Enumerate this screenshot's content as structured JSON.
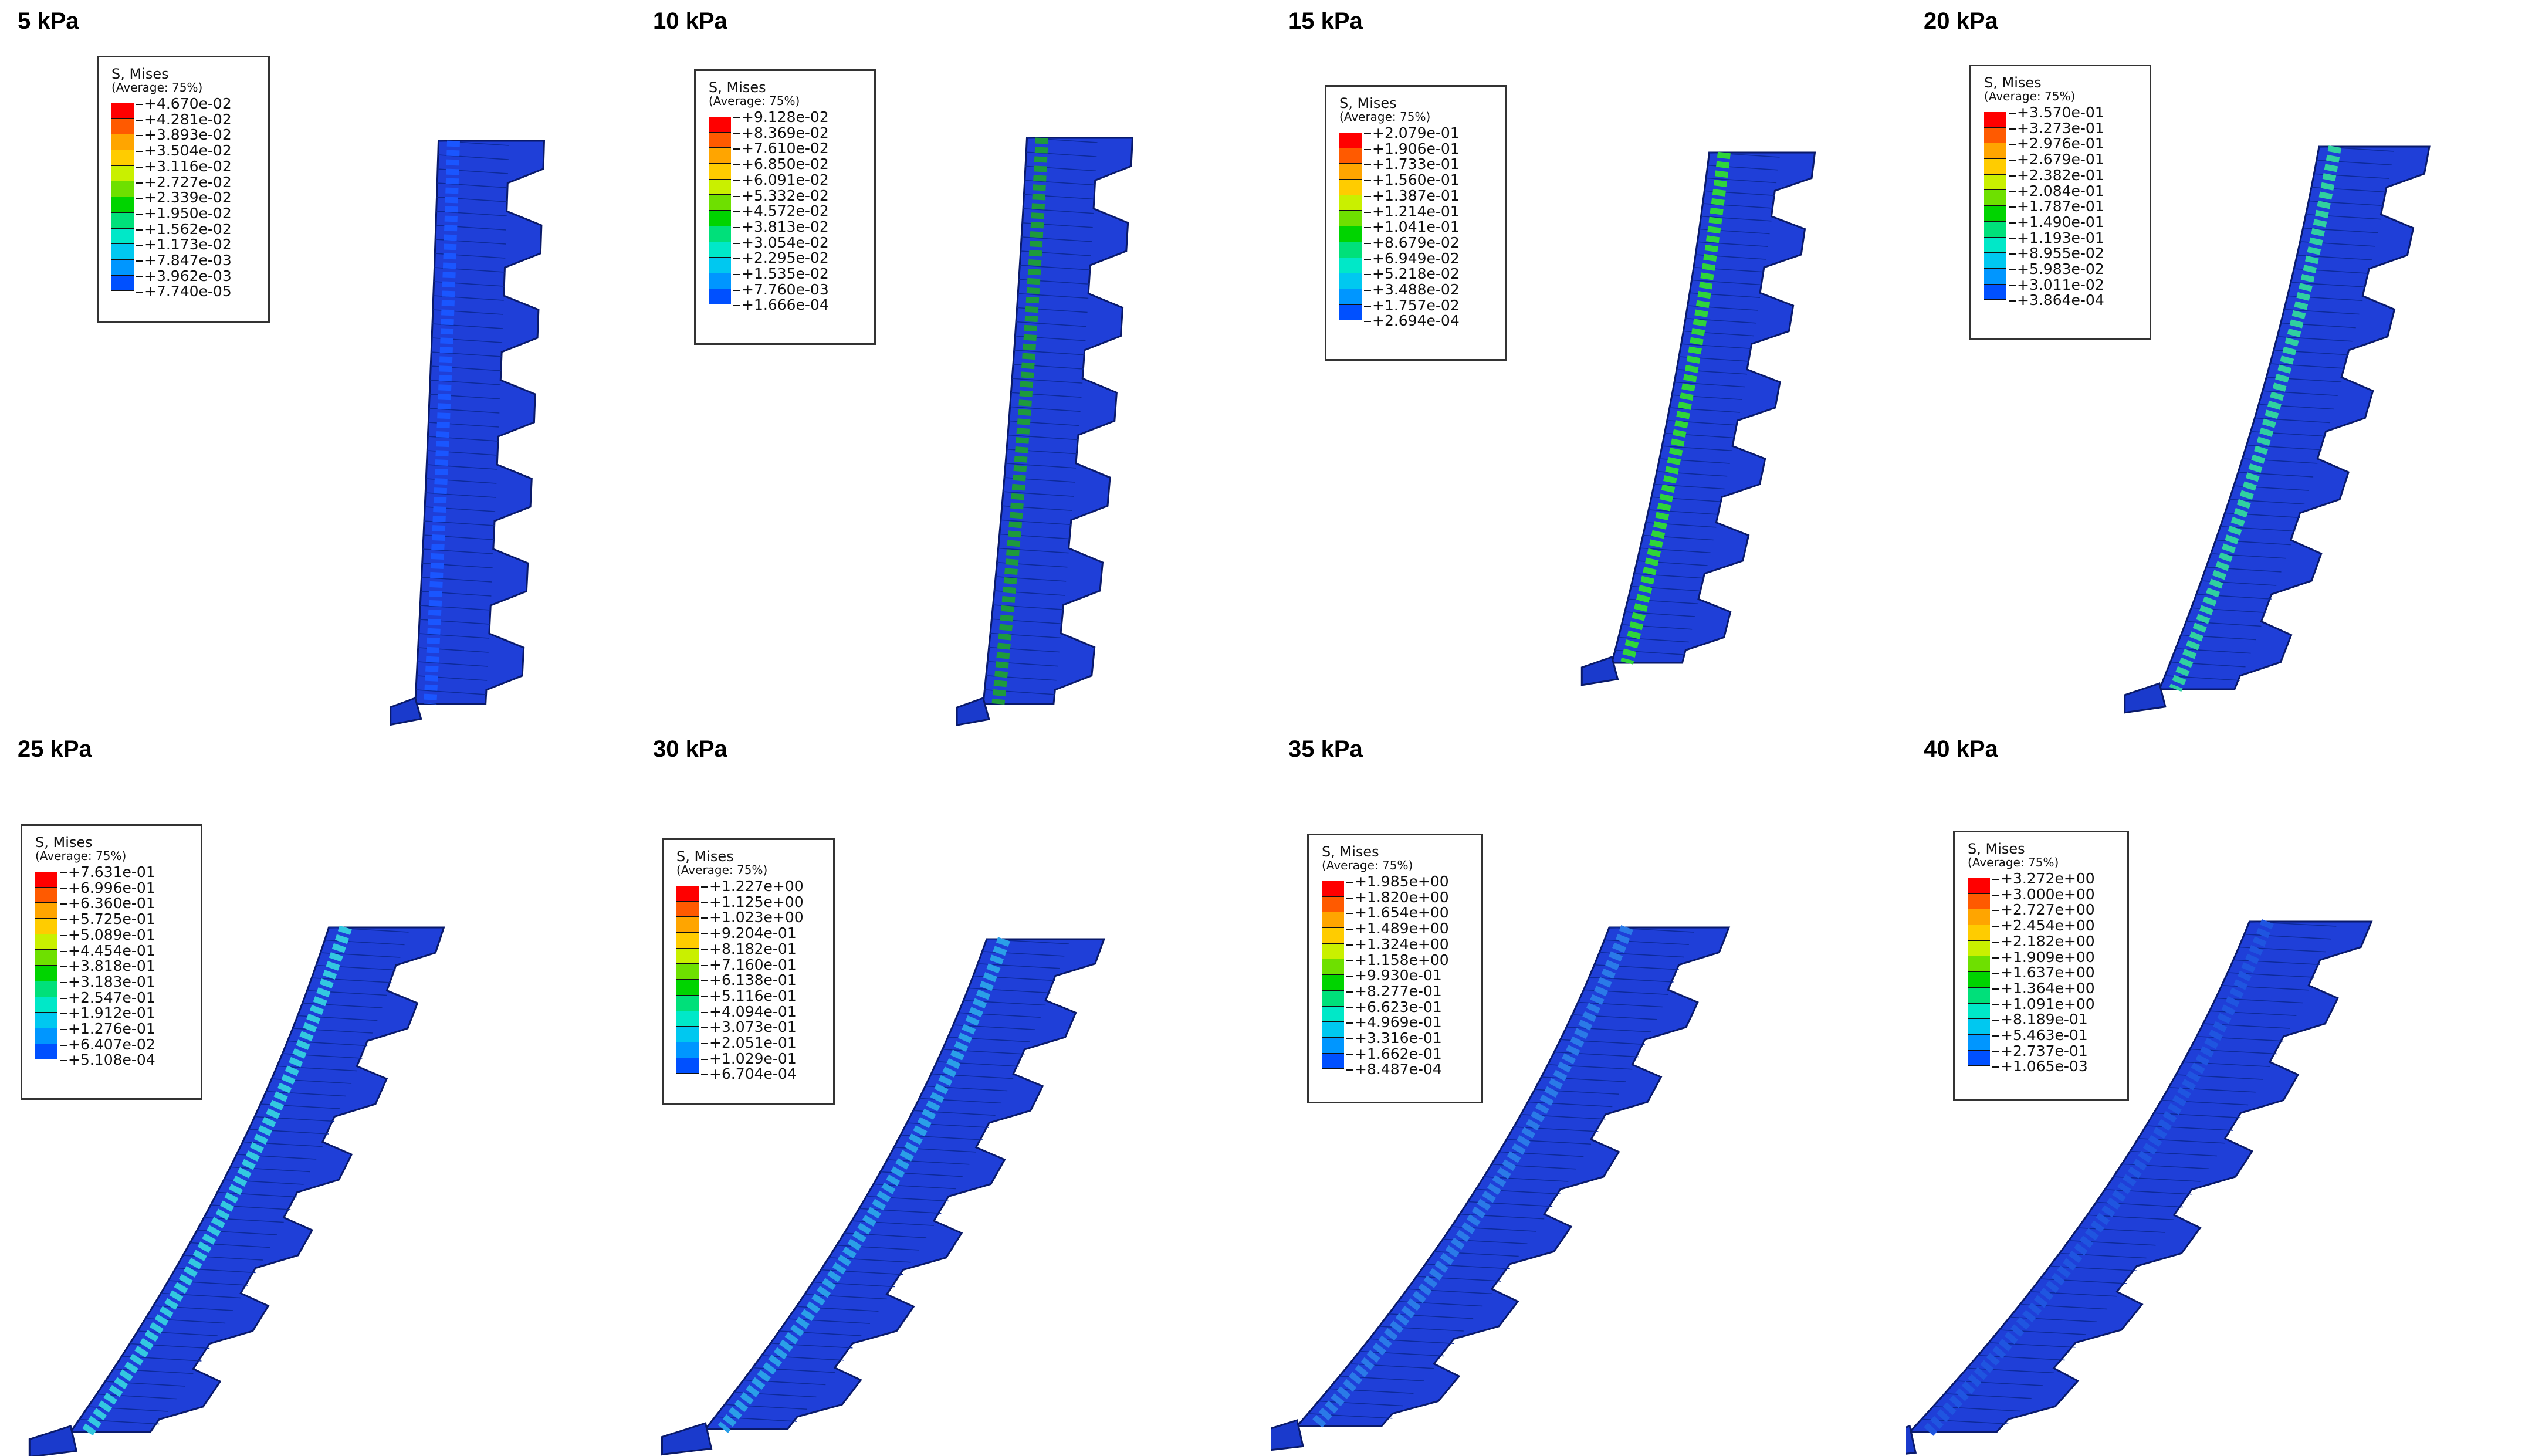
{
  "legend_title": "S, Mises",
  "legend_sub": "(Average: 75%)",
  "colormap": [
    "#ff0000",
    "#ff5a00",
    "#ffa500",
    "#ffcc00",
    "#c9f000",
    "#6ee000",
    "#00d400",
    "#00e07a",
    "#00e8c8",
    "#00c8f0",
    "#0096ff",
    "#0050ff",
    "#0000e8"
  ],
  "panels": [
    {
      "title": "5 kPa",
      "values": [
        "+4.670e-02",
        "+4.281e-02",
        "+3.893e-02",
        "+3.504e-02",
        "+3.116e-02",
        "+2.727e-02",
        "+2.339e-02",
        "+1.950e-02",
        "+1.562e-02",
        "+1.173e-02",
        "+7.847e-03",
        "+3.962e-03",
        "+7.740e-05"
      ]
    },
    {
      "title": "10 kPa",
      "values": [
        "+9.128e-02",
        "+8.369e-02",
        "+7.610e-02",
        "+6.850e-02",
        "+6.091e-02",
        "+5.332e-02",
        "+4.572e-02",
        "+3.813e-02",
        "+3.054e-02",
        "+2.295e-02",
        "+1.535e-02",
        "+7.760e-03",
        "+1.666e-04"
      ]
    },
    {
      "title": "15 kPa",
      "values": [
        "+2.079e-01",
        "+1.906e-01",
        "+1.733e-01",
        "+1.560e-01",
        "+1.387e-01",
        "+1.214e-01",
        "+1.041e-01",
        "+8.679e-02",
        "+6.949e-02",
        "+5.218e-02",
        "+3.488e-02",
        "+1.757e-02",
        "+2.694e-04"
      ]
    },
    {
      "title": "20 kPa",
      "values": [
        "+3.570e-01",
        "+3.273e-01",
        "+2.976e-01",
        "+2.679e-01",
        "+2.382e-01",
        "+2.084e-01",
        "+1.787e-01",
        "+1.490e-01",
        "+1.193e-01",
        "+8.955e-02",
        "+5.983e-02",
        "+3.011e-02",
        "+3.864e-04"
      ]
    },
    {
      "title": "25 kPa",
      "values": [
        "+7.631e-01",
        "+6.996e-01",
        "+6.360e-01",
        "+5.725e-01",
        "+5.089e-01",
        "+4.454e-01",
        "+3.818e-01",
        "+3.183e-01",
        "+2.547e-01",
        "+1.912e-01",
        "+1.276e-01",
        "+6.407e-02",
        "+5.108e-04"
      ]
    },
    {
      "title": "30 kPa",
      "values": [
        "+1.227e+00",
        "+1.125e+00",
        "+1.023e+00",
        "+9.204e-01",
        "+8.182e-01",
        "+7.160e-01",
        "+6.138e-01",
        "+5.116e-01",
        "+4.094e-01",
        "+3.073e-01",
        "+2.051e-01",
        "+1.029e-01",
        "+6.704e-04"
      ]
    },
    {
      "title": "35 kPa",
      "values": [
        "+1.985e+00",
        "+1.820e+00",
        "+1.654e+00",
        "+1.489e+00",
        "+1.324e+00",
        "+1.158e+00",
        "+9.930e-01",
        "+8.277e-01",
        "+6.623e-01",
        "+4.969e-01",
        "+3.316e-01",
        "+1.662e-01",
        "+8.487e-04"
      ]
    },
    {
      "title": "40 kPa",
      "values": [
        "+3.272e+00",
        "+3.000e+00",
        "+2.727e+00",
        "+2.454e+00",
        "+2.182e+00",
        "+1.909e+00",
        "+1.637e+00",
        "+1.364e+00",
        "+1.091e+00",
        "+8.189e-01",
        "+5.463e-01",
        "+2.737e-01",
        "+1.065e-03"
      ]
    }
  ]
}
